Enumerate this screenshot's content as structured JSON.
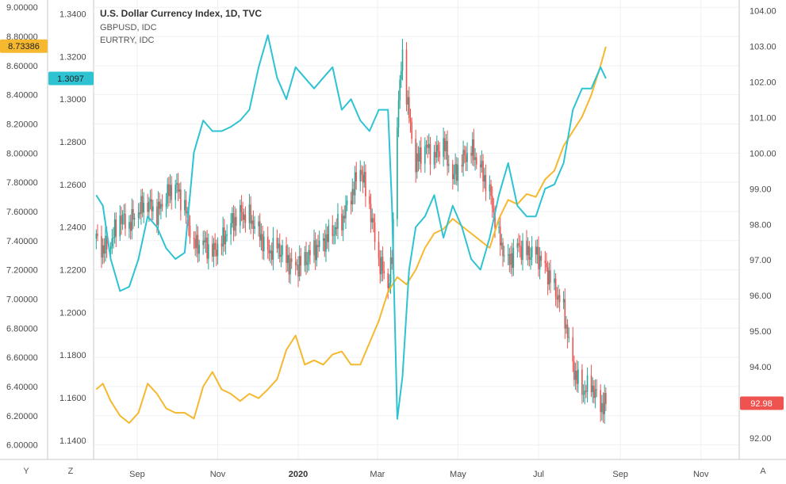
{
  "chart_data": {
    "type": "line",
    "title": "U.S. Dollar Currency Index, 1D, TVC",
    "legend": [
      "GBPUSD, IDC",
      "EURTRY, IDC"
    ],
    "x_labels": [
      "Sep",
      "Nov",
      "2020",
      "Mar",
      "May",
      "Jul",
      "Sep",
      "Nov"
    ],
    "axes": {
      "eurtry": {
        "ticks": [
          "9.00000",
          "8.80000",
          "8.60000",
          "8.40000",
          "8.20000",
          "8.00000",
          "7.80000",
          "7.60000",
          "7.40000",
          "7.20000",
          "7.00000",
          "6.80000",
          "6.60000",
          "6.40000",
          "6.20000",
          "6.00000"
        ],
        "range": [
          5.9,
          9.05
        ]
      },
      "gbpusd": {
        "ticks": [
          "1.3400",
          "1.3200",
          "1.3000",
          "1.2800",
          "1.2600",
          "1.2400",
          "1.2200",
          "1.2000",
          "1.1800",
          "1.1600",
          "1.1400"
        ],
        "range": [
          1.131,
          1.3465
        ]
      },
      "dxy": {
        "ticks": [
          "104.00",
          "103.00",
          "102.00",
          "101.00",
          "100.00",
          "99.00",
          "98.00",
          "97.00",
          "96.00",
          "95.00",
          "94.00",
          "93.00",
          "92.00"
        ],
        "range": [
          91.4,
          104.3
        ]
      }
    },
    "badges": {
      "eurtry": "8.73386",
      "gbpusd": "1.3097",
      "dxy": "92.98"
    },
    "colors": {
      "eurtry": "#f5b82e",
      "gbpusd": "#2ec3d2",
      "up": "#26a69a",
      "down": "#ef5350"
    },
    "series": [
      {
        "name": "EURTRY, IDC",
        "x": [
          "2019-08-01",
          "2019-08-06",
          "2019-08-12",
          "2019-08-19",
          "2019-08-26",
          "2019-09-02",
          "2019-09-09",
          "2019-09-16",
          "2019-09-23",
          "2019-09-30",
          "2019-10-07",
          "2019-10-14",
          "2019-10-21",
          "2019-10-28",
          "2019-11-04",
          "2019-11-11",
          "2019-11-18",
          "2019-11-25",
          "2019-12-02",
          "2019-12-09",
          "2019-12-16",
          "2019-12-23",
          "2019-12-30",
          "2020-01-06",
          "2020-01-13",
          "2020-01-20",
          "2020-01-27",
          "2020-02-03",
          "2020-02-10",
          "2020-02-17",
          "2020-02-24",
          "2020-03-02",
          "2020-03-09",
          "2020-03-16",
          "2020-03-23",
          "2020-03-30",
          "2020-04-06",
          "2020-04-13",
          "2020-04-20",
          "2020-04-27",
          "2020-05-04",
          "2020-05-11",
          "2020-05-18",
          "2020-05-25",
          "2020-06-01",
          "2020-06-08",
          "2020-06-15",
          "2020-06-22",
          "2020-06-29",
          "2020-07-06",
          "2020-07-13",
          "2020-07-20",
          "2020-07-27",
          "2020-08-03",
          "2020-08-10",
          "2020-08-17",
          "2020-08-21"
        ],
        "values": [
          6.38,
          6.42,
          6.3,
          6.2,
          6.15,
          6.22,
          6.42,
          6.35,
          6.25,
          6.22,
          6.22,
          6.18,
          6.4,
          6.5,
          6.38,
          6.35,
          6.3,
          6.35,
          6.32,
          6.38,
          6.45,
          6.65,
          6.75,
          6.55,
          6.58,
          6.55,
          6.62,
          6.64,
          6.55,
          6.55,
          6.7,
          6.85,
          7.05,
          7.15,
          7.1,
          7.2,
          7.35,
          7.45,
          7.48,
          7.55,
          7.5,
          7.45,
          7.4,
          7.35,
          7.55,
          7.68,
          7.65,
          7.72,
          7.7,
          7.82,
          7.88,
          8.05,
          8.15,
          8.25,
          8.4,
          8.6,
          8.73
        ]
      },
      {
        "name": "GBPUSD, IDC",
        "x": [
          "2019-08-01",
          "2019-08-06",
          "2019-08-12",
          "2019-08-19",
          "2019-08-26",
          "2019-09-02",
          "2019-09-09",
          "2019-09-16",
          "2019-09-23",
          "2019-09-30",
          "2019-10-07",
          "2019-10-14",
          "2019-10-21",
          "2019-10-28",
          "2019-11-04",
          "2019-11-11",
          "2019-11-18",
          "2019-11-25",
          "2019-12-02",
          "2019-12-09",
          "2019-12-16",
          "2019-12-23",
          "2019-12-30",
          "2020-01-06",
          "2020-01-13",
          "2020-01-20",
          "2020-01-27",
          "2020-02-03",
          "2020-02-10",
          "2020-02-17",
          "2020-02-24",
          "2020-03-02",
          "2020-03-09",
          "2020-03-12",
          "2020-03-16",
          "2020-03-20",
          "2020-03-25",
          "2020-03-30",
          "2020-04-06",
          "2020-04-13",
          "2020-04-20",
          "2020-04-27",
          "2020-05-04",
          "2020-05-11",
          "2020-05-18",
          "2020-05-25",
          "2020-06-01",
          "2020-06-08",
          "2020-06-15",
          "2020-06-22",
          "2020-06-29",
          "2020-07-06",
          "2020-07-13",
          "2020-07-20",
          "2020-07-27",
          "2020-08-03",
          "2020-08-10",
          "2020-08-17",
          "2020-08-21"
        ],
        "values": [
          1.255,
          1.25,
          1.225,
          1.21,
          1.212,
          1.225,
          1.245,
          1.24,
          1.23,
          1.225,
          1.228,
          1.275,
          1.29,
          1.285,
          1.285,
          1.287,
          1.29,
          1.295,
          1.315,
          1.33,
          1.31,
          1.3,
          1.315,
          1.31,
          1.305,
          1.31,
          1.315,
          1.295,
          1.3,
          1.29,
          1.285,
          1.295,
          1.295,
          1.25,
          1.15,
          1.17,
          1.22,
          1.24,
          1.245,
          1.255,
          1.235,
          1.25,
          1.24,
          1.225,
          1.22,
          1.235,
          1.255,
          1.27,
          1.25,
          1.245,
          1.245,
          1.258,
          1.26,
          1.27,
          1.295,
          1.305,
          1.305,
          1.315,
          1.3097
        ]
      },
      {
        "name": "U.S. Dollar Currency Index",
        "x": [
          "2019-08-01",
          "2019-08-06",
          "2019-08-12",
          "2019-08-19",
          "2019-08-26",
          "2019-09-02",
          "2019-09-09",
          "2019-09-16",
          "2019-09-23",
          "2019-09-30",
          "2019-10-07",
          "2019-10-14",
          "2019-10-21",
          "2019-10-28",
          "2019-11-04",
          "2019-11-11",
          "2019-11-18",
          "2019-11-25",
          "2019-12-02",
          "2019-12-09",
          "2019-12-16",
          "2019-12-23",
          "2019-12-30",
          "2020-01-06",
          "2020-01-13",
          "2020-01-20",
          "2020-01-27",
          "2020-02-03",
          "2020-02-10",
          "2020-02-17",
          "2020-02-24",
          "2020-03-02",
          "2020-03-09",
          "2020-03-12",
          "2020-03-16",
          "2020-03-20",
          "2020-03-25",
          "2020-03-30",
          "2020-04-06",
          "2020-04-13",
          "2020-04-20",
          "2020-04-27",
          "2020-05-04",
          "2020-05-11",
          "2020-05-18",
          "2020-05-25",
          "2020-06-01",
          "2020-06-08",
          "2020-06-15",
          "2020-06-22",
          "2020-06-29",
          "2020-07-06",
          "2020-07-13",
          "2020-07-20",
          "2020-07-27",
          "2020-08-03",
          "2020-08-10",
          "2020-08-17",
          "2020-08-21"
        ],
        "values": [
          97.6,
          97.3,
          97.5,
          98.2,
          98.0,
          98.4,
          98.6,
          98.3,
          98.8,
          99.1,
          98.5,
          97.4,
          97.5,
          97.2,
          97.5,
          98.0,
          98.3,
          98.2,
          97.8,
          97.2,
          97.4,
          97.0,
          96.8,
          97.0,
          97.3,
          97.5,
          97.8,
          98.1,
          98.8,
          99.6,
          98.5,
          97.0,
          96.3,
          97.0,
          101.0,
          102.8,
          101.0,
          99.7,
          100.2,
          99.9,
          100.3,
          99.3,
          99.8,
          100.1,
          99.6,
          98.9,
          97.6,
          96.9,
          97.4,
          97.2,
          97.2,
          96.8,
          96.2,
          95.6,
          94.0,
          93.3,
          93.5,
          92.9,
          92.98
        ]
      }
    ]
  },
  "scale_buttons": {
    "left_outer": "Y",
    "left_inner": "Z",
    "right": "A"
  }
}
